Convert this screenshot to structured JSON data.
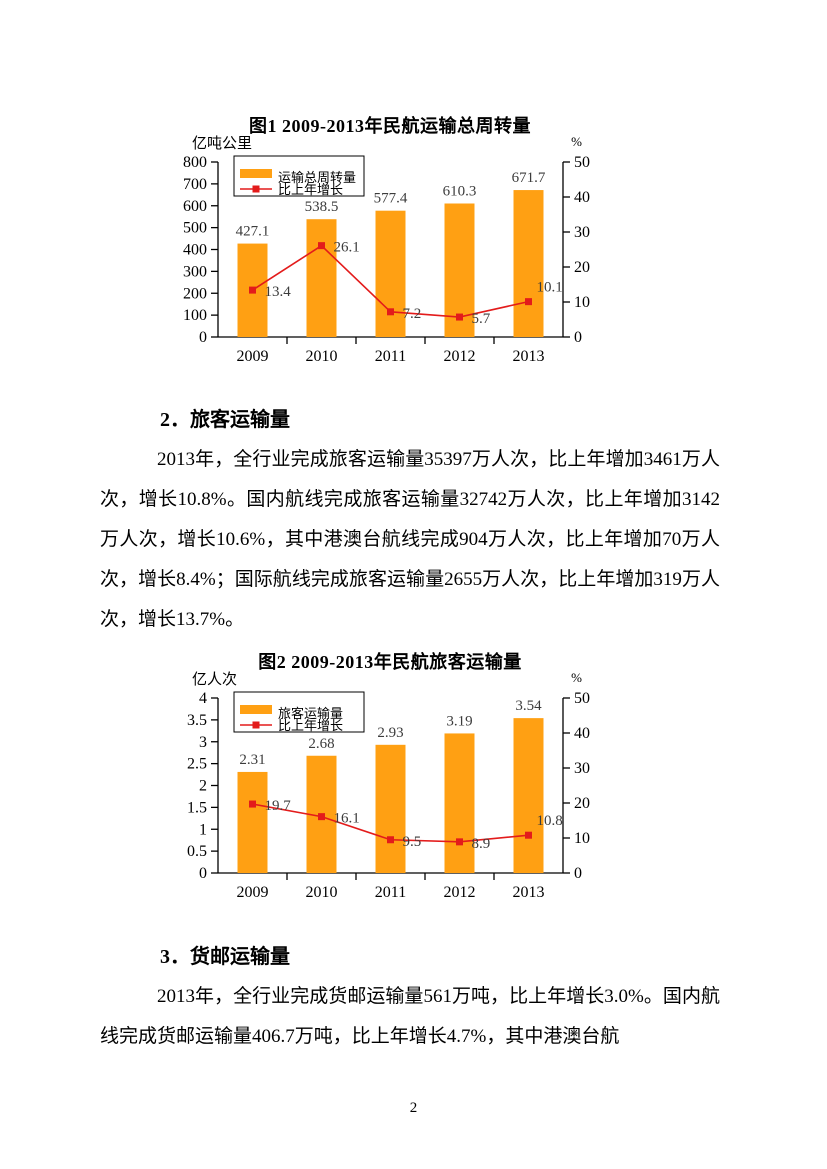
{
  "document": {
    "page_number": "2"
  },
  "sections": [
    {
      "heading": "2．旅客运输量",
      "paragraph": "2013年，全行业完成旅客运输量35397万人次，比上年增加3461万人次，增长10.8%。国内航线完成旅客运输量32742万人次，比上年增加3142万人次，增长10.6%，其中港澳台航线完成904万人次，比上年增加70万人次，增长8.4%；国际航线完成旅客运输量2655万人次，比上年增加319万人次，增长13.7%。"
    },
    {
      "heading": "3．货邮运输量",
      "paragraph": "2013年，全行业完成货邮运输量561万吨，比上年增长3.0%。国内航线完成货邮运输量406.7万吨，比上年增长4.7%，其中港澳台航"
    }
  ],
  "chart_data": [
    {
      "type": "bar",
      "title": "图1 2009-2013年民航运输总周转量",
      "left_axis_unit": "亿吨公里",
      "right_axis_unit": "%",
      "categories": [
        "2009",
        "2010",
        "2011",
        "2012",
        "2013"
      ],
      "series": [
        {
          "name": "运输总周转量",
          "type": "bar",
          "axis": "left",
          "values": [
            427.1,
            538.5,
            577.4,
            610.3,
            671.7
          ]
        },
        {
          "name": "比上年增长",
          "type": "line",
          "axis": "right",
          "values": [
            13.4,
            26.1,
            7.2,
            5.7,
            10.1
          ]
        }
      ],
      "left_ylim": [
        0,
        800
      ],
      "left_tick_step": 100,
      "right_ylim": [
        0,
        50
      ],
      "right_tick_step": 10,
      "legend_position": "top-left",
      "grid": false,
      "bar_color": "#FFA013",
      "line_color": "#E31B1B",
      "value_label_color": "#3C3C3C"
    },
    {
      "type": "bar",
      "title": "图2 2009-2013年民航旅客运输量",
      "left_axis_unit": "亿人次",
      "right_axis_unit": "%",
      "categories": [
        "2009",
        "2010",
        "2011",
        "2012",
        "2013"
      ],
      "series": [
        {
          "name": "旅客运输量",
          "type": "bar",
          "axis": "left",
          "values": [
            2.31,
            2.68,
            2.93,
            3.19,
            3.54
          ]
        },
        {
          "name": "比上年增长",
          "type": "line",
          "axis": "right",
          "values": [
            19.7,
            16.1,
            9.5,
            8.9,
            10.8
          ]
        }
      ],
      "left_ylim": [
        0,
        4
      ],
      "left_tick_step": 0.5,
      "right_ylim": [
        0,
        50
      ],
      "right_tick_step": 10,
      "legend_position": "top-left",
      "grid": false,
      "bar_color": "#FFA013",
      "line_color": "#E31B1B",
      "value_label_color": "#3C3C3C"
    }
  ]
}
